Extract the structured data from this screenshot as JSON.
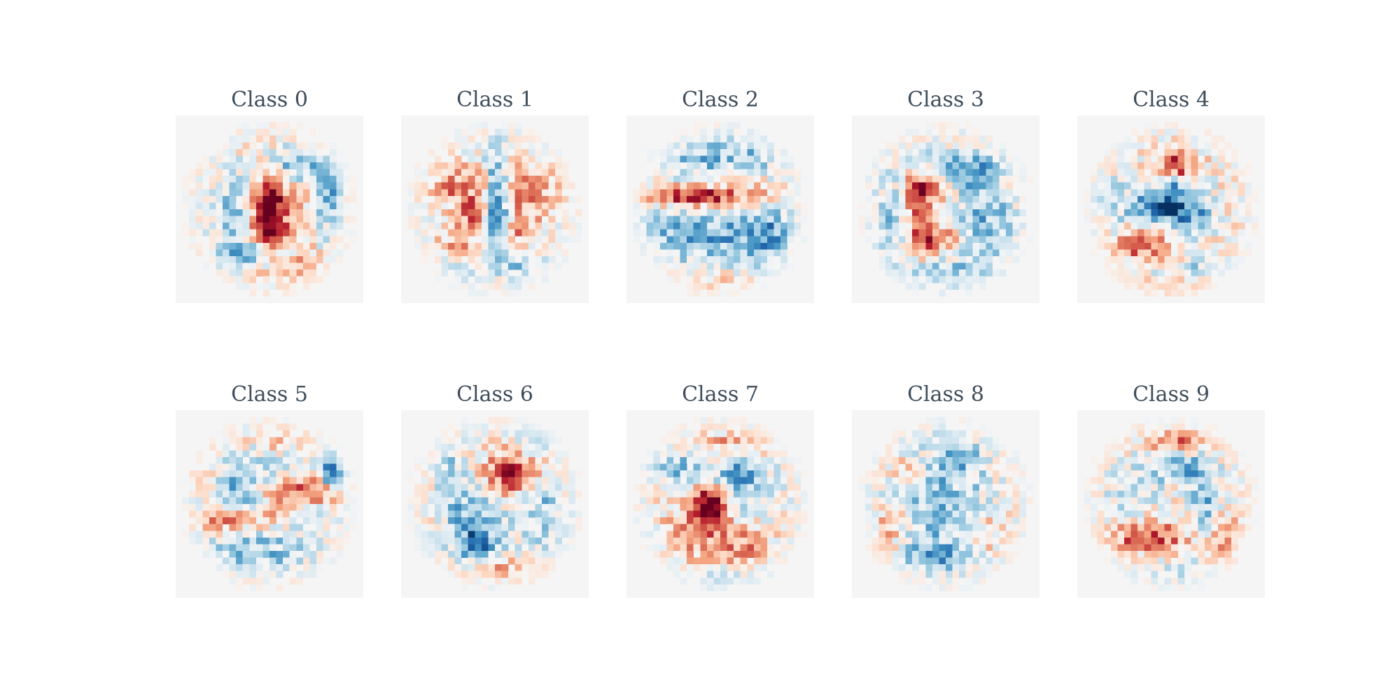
{
  "chart_data": {
    "type": "heatmap",
    "colormap": "RdBu",
    "colormap_colors": [
      "#67001f",
      "#b2182b",
      "#d6604d",
      "#f4a582",
      "#fddbc7",
      "#f7f7f7",
      "#d1e5f0",
      "#92c5de",
      "#4393c3",
      "#2166ac",
      "#053061"
    ],
    "axes_off": true,
    "grid_shape": [
      2,
      5
    ],
    "image_shape": [
      28,
      28
    ],
    "value_range": [
      -1,
      1
    ],
    "panels": [
      {
        "title": "Class 0",
        "features": [
          {
            "x": 14,
            "y": 14.5,
            "sx": 1.8,
            "sy": 4.0,
            "a": 1.0
          },
          {
            "x": 14,
            "y": 14,
            "sx": 8.5,
            "sy": 9.5,
            "a": 0.18
          },
          {
            "x": 8.5,
            "y": 15,
            "sx": 2.0,
            "sy": 5.0,
            "a": -0.5
          },
          {
            "x": 23,
            "y": 12.5,
            "sx": 1.5,
            "sy": 4.0,
            "a": -0.55
          },
          {
            "x": 17.5,
            "y": 7.5,
            "sx": 4.0,
            "sy": 2.0,
            "a": -0.5
          },
          {
            "x": 12,
            "y": 20.5,
            "sx": 4.0,
            "sy": 1.5,
            "a": -0.45
          },
          {
            "x": 19,
            "y": 22.5,
            "sx": 2.0,
            "sy": 1.5,
            "a": 0.35
          }
        ]
      },
      {
        "title": "Class 1",
        "features": [
          {
            "x": 14.3,
            "y": 13.5,
            "sx": 1.2,
            "sy": 5.5,
            "a": -0.85
          },
          {
            "x": 9,
            "y": 11,
            "sx": 3.5,
            "sy": 2.5,
            "a": 0.45
          },
          {
            "x": 19,
            "y": 11,
            "sx": 3.5,
            "sy": 2.5,
            "a": 0.45
          },
          {
            "x": 11,
            "y": 14.5,
            "sx": 1.2,
            "sy": 1.2,
            "a": 0.65
          },
          {
            "x": 9,
            "y": 19,
            "sx": 2.5,
            "sy": 2.0,
            "a": 0.4
          },
          {
            "x": 18,
            "y": 17,
            "sx": 2.0,
            "sy": 2.5,
            "a": 0.4
          },
          {
            "x": 10,
            "y": 22.5,
            "sx": 4.0,
            "sy": 1.5,
            "a": -0.3
          },
          {
            "x": 18,
            "y": 22.5,
            "sx": 4.0,
            "sy": 1.5,
            "a": -0.3
          },
          {
            "x": 13.5,
            "y": 23.5,
            "sx": 2.0,
            "sy": 1.2,
            "a": 0.35
          }
        ]
      },
      {
        "title": "Class 2",
        "features": [
          {
            "x": 10.5,
            "y": 12,
            "sx": 5.5,
            "sy": 1.0,
            "a": 0.9
          },
          {
            "x": 11,
            "y": 18,
            "sx": 8.0,
            "sy": 2.5,
            "a": -0.5
          },
          {
            "x": 14,
            "y": 6,
            "sx": 7.0,
            "sy": 2.0,
            "a": -0.4
          },
          {
            "x": 21,
            "y": 18,
            "sx": 2.5,
            "sy": 4.0,
            "a": -0.4
          },
          {
            "x": 20,
            "y": 11.5,
            "sx": 2.0,
            "sy": 1.5,
            "a": 0.3
          },
          {
            "x": 14,
            "y": 25,
            "sx": 6.0,
            "sy": 1.2,
            "a": 0.25
          }
        ]
      },
      {
        "title": "Class 3",
        "features": [
          {
            "x": 10,
            "y": 14,
            "sx": 1.5,
            "sy": 4.0,
            "a": 0.65
          },
          {
            "x": 12.5,
            "y": 18.5,
            "sx": 3.0,
            "sy": 1.2,
            "a": 0.6
          },
          {
            "x": 12,
            "y": 10.5,
            "sx": 2.5,
            "sy": 1.5,
            "a": 0.5
          },
          {
            "x": 17,
            "y": 8,
            "sx": 5.0,
            "sy": 2.0,
            "a": -0.45
          },
          {
            "x": 20,
            "y": 16,
            "sx": 3.5,
            "sy": 5.0,
            "a": -0.4
          },
          {
            "x": 6,
            "y": 17,
            "sx": 2.0,
            "sy": 5.0,
            "a": -0.35
          },
          {
            "x": 13,
            "y": 24,
            "sx": 6.0,
            "sy": 1.5,
            "a": -0.35
          },
          {
            "x": 24,
            "y": 9,
            "sx": 1.5,
            "sy": 2.5,
            "a": 0.25
          }
        ]
      },
      {
        "title": "Class 4",
        "features": [
          {
            "x": 14.5,
            "y": 7.5,
            "sx": 1.5,
            "sy": 1.5,
            "a": 1.0
          },
          {
            "x": 11.5,
            "y": 13.5,
            "sx": 2.5,
            "sy": 2.0,
            "a": -0.8
          },
          {
            "x": 17,
            "y": 14.5,
            "sx": 2.5,
            "sy": 2.5,
            "a": -0.7
          },
          {
            "x": 5,
            "y": 13,
            "sx": 2.0,
            "sy": 3.0,
            "a": -0.3
          },
          {
            "x": 10,
            "y": 19.5,
            "sx": 3.5,
            "sy": 1.5,
            "a": 0.5
          },
          {
            "x": 16,
            "y": 23,
            "sx": 4.0,
            "sy": 1.2,
            "a": -0.3
          },
          {
            "x": 13,
            "y": 25.5,
            "sx": 5.0,
            "sy": 1.0,
            "a": 0.45
          },
          {
            "x": 14,
            "y": 10,
            "sx": 1.0,
            "sy": 2.5,
            "a": -0.5
          },
          {
            "x": 14,
            "y": 14,
            "sx": 9.0,
            "sy": 9.0,
            "a": 0.12
          }
        ]
      },
      {
        "title": "Class 5",
        "features": [
          {
            "x": 23.5,
            "y": 9,
            "sx": 1.2,
            "sy": 1.8,
            "a": -1.0
          },
          {
            "x": 19.5,
            "y": 12,
            "sx": 3.5,
            "sy": 1.2,
            "a": 0.7
          },
          {
            "x": 8,
            "y": 16.5,
            "sx": 4.0,
            "sy": 1.2,
            "a": 0.6
          },
          {
            "x": 14,
            "y": 13,
            "sx": 2.0,
            "sy": 2.5,
            "a": 0.35
          },
          {
            "x": 10.5,
            "y": 11,
            "sx": 3.5,
            "sy": 4.0,
            "a": -0.45
          },
          {
            "x": 12,
            "y": 21,
            "sx": 6.0,
            "sy": 2.0,
            "a": -0.35
          },
          {
            "x": 14,
            "y": 4.5,
            "sx": 6.0,
            "sy": 1.2,
            "a": 0.3
          },
          {
            "x": 4,
            "y": 9,
            "sx": 1.5,
            "sy": 2.5,
            "a": 0.3
          }
        ]
      },
      {
        "title": "Class 6",
        "features": [
          {
            "x": 16.5,
            "y": 9.5,
            "sx": 3.0,
            "sy": 2.0,
            "a": 0.75
          },
          {
            "x": 11,
            "y": 18,
            "sx": 3.0,
            "sy": 4.5,
            "a": -0.55
          },
          {
            "x": 11.5,
            "y": 20,
            "sx": 1.5,
            "sy": 1.2,
            "a": -0.5
          },
          {
            "x": 21,
            "y": 4,
            "sx": 2.0,
            "sy": 1.5,
            "a": -0.5
          },
          {
            "x": 21,
            "y": 15,
            "sx": 2.5,
            "sy": 4.0,
            "a": -0.4
          },
          {
            "x": 7.5,
            "y": 10,
            "sx": 1.5,
            "sy": 4.0,
            "a": -0.3
          },
          {
            "x": 15,
            "y": 24,
            "sx": 7.0,
            "sy": 1.2,
            "a": 0.35
          },
          {
            "x": 14,
            "y": 14,
            "sx": 10.0,
            "sy": 10.0,
            "a": 0.08
          }
        ]
      },
      {
        "title": "Class 7",
        "features": [
          {
            "x": 12.5,
            "y": 14,
            "sx": 1.5,
            "sy": 2.0,
            "a": 1.0
          },
          {
            "x": 11,
            "y": 18,
            "sx": 3.5,
            "sy": 3.5,
            "a": 0.45
          },
          {
            "x": 18,
            "y": 20,
            "sx": 2.5,
            "sy": 3.0,
            "a": 0.4
          },
          {
            "x": 17,
            "y": 10,
            "sx": 2.5,
            "sy": 1.5,
            "a": -0.75
          },
          {
            "x": 18.5,
            "y": 15,
            "sx": 2.0,
            "sy": 1.2,
            "a": -0.5
          },
          {
            "x": 7,
            "y": 8.5,
            "sx": 3.0,
            "sy": 1.5,
            "a": -0.4
          },
          {
            "x": 16,
            "y": 4.5,
            "sx": 5.0,
            "sy": 1.0,
            "a": 0.3
          },
          {
            "x": 14,
            "y": 25.5,
            "sx": 8.0,
            "sy": 1.2,
            "a": -0.35
          }
        ]
      },
      {
        "title": "Class 8",
        "features": [
          {
            "x": 13,
            "y": 14,
            "sx": 5.0,
            "sy": 6.0,
            "a": -0.4
          },
          {
            "x": 16,
            "y": 7,
            "sx": 2.0,
            "sy": 1.5,
            "a": -0.45
          },
          {
            "x": 8,
            "y": 9,
            "sx": 2.5,
            "sy": 2.0,
            "a": 0.3
          },
          {
            "x": 6,
            "y": 17,
            "sx": 1.5,
            "sy": 2.0,
            "a": 0.45
          },
          {
            "x": 20,
            "y": 19,
            "sx": 2.5,
            "sy": 3.0,
            "a": 0.3
          },
          {
            "x": 14,
            "y": 22,
            "sx": 5.0,
            "sy": 1.5,
            "a": -0.35
          },
          {
            "x": 4.5,
            "y": 22,
            "sx": 1.5,
            "sy": 2.5,
            "a": 0.35
          }
        ]
      },
      {
        "title": "Class 9",
        "features": [
          {
            "x": 10.5,
            "y": 19,
            "sx": 3.5,
            "sy": 1.5,
            "a": 0.65
          },
          {
            "x": 19,
            "y": 13,
            "sx": 1.5,
            "sy": 3.0,
            "a": -0.6
          },
          {
            "x": 15.5,
            "y": 8.5,
            "sx": 3.0,
            "sy": 1.5,
            "a": -0.55
          },
          {
            "x": 16,
            "y": 4.5,
            "sx": 4.0,
            "sy": 1.0,
            "a": 0.45
          },
          {
            "x": 9,
            "y": 12,
            "sx": 3.0,
            "sy": 3.0,
            "a": -0.35
          },
          {
            "x": 22,
            "y": 20,
            "sx": 1.5,
            "sy": 3.0,
            "a": 0.35
          },
          {
            "x": 14,
            "y": 24,
            "sx": 6.0,
            "sy": 1.2,
            "a": -0.3
          },
          {
            "x": 14,
            "y": 14,
            "sx": 9.0,
            "sy": 9.0,
            "a": 0.12
          }
        ]
      }
    ]
  }
}
